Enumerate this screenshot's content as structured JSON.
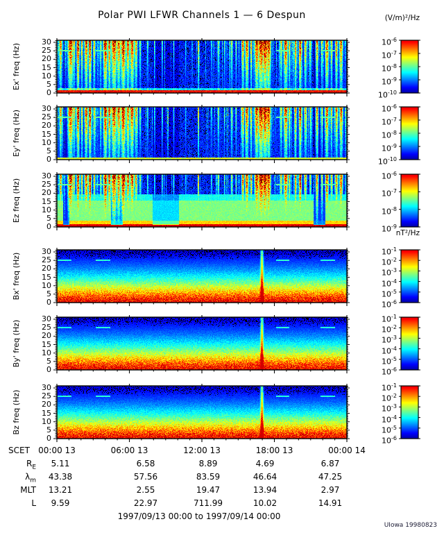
{
  "title": "Polar PWI LFWR Channels 1 — 6 Despun",
  "credit": "UIowa 19980823",
  "date_range_label": "1997/09/13 00:00 to 1997/09/14 00:00",
  "units": {
    "electric": "(V/m)²/Hz",
    "magnetic": "nT²/Hz"
  },
  "time_axis": {
    "prefix": "SCET",
    "tick_labels": [
      "00:00 13",
      "06:00 13",
      "12:00 13",
      "18:00 13",
      "00:00 14"
    ],
    "tick_hours": [
      0,
      6,
      12,
      18,
      24
    ]
  },
  "frequency_axis": {
    "ticks_hz": [
      0,
      5,
      10,
      15,
      20,
      25,
      30
    ],
    "max_hz": 31.25
  },
  "panels": [
    {
      "id": "ex",
      "ylabel": "Ex' freq (Hz)",
      "kind": "E1",
      "seed": 101,
      "colorbar_exponents": [
        -6,
        -7,
        -8,
        -9,
        -10
      ]
    },
    {
      "id": "ey",
      "ylabel": "Ey' freq (Hz)",
      "kind": "E2",
      "seed": 202,
      "colorbar_exponents": [
        -6,
        -7,
        -8,
        -9,
        -10
      ]
    },
    {
      "id": "ez",
      "ylabel": "Ez freq (Hz)",
      "kind": "E3",
      "seed": 303,
      "colorbar_exponents": [
        -6,
        -7,
        -8,
        -9
      ]
    },
    {
      "id": "bx",
      "ylabel": "Bx' freq (Hz)",
      "kind": "B",
      "seed": 404,
      "colorbar_exponents": [
        -1,
        -2,
        -3,
        -4,
        -5,
        -6
      ]
    },
    {
      "id": "by",
      "ylabel": "By' freq (Hz)",
      "kind": "B",
      "seed": 505,
      "colorbar_exponents": [
        -1,
        -2,
        -3,
        -4,
        -5,
        -6
      ]
    },
    {
      "id": "bz",
      "ylabel": "Bz freq (Hz)",
      "kind": "B",
      "seed": 606,
      "colorbar_exponents": [
        -1,
        -2,
        -3,
        -4,
        -5,
        -6
      ]
    }
  ],
  "ephemeris": {
    "rows": [
      {
        "label": "R",
        "sub": "E",
        "values": [
          "5.11",
          "6.58",
          "8.89",
          "4.69",
          "6.87"
        ]
      },
      {
        "label": "λ",
        "sub": "m",
        "values": [
          "43.38",
          "57.56",
          "83.59",
          "46.64",
          "47.25"
        ]
      },
      {
        "label": "MLT",
        "sub": "",
        "values": [
          "13.21",
          "2.55",
          "19.47",
          "13.94",
          "2.97"
        ]
      },
      {
        "label": "L",
        "sub": "",
        "values": [
          "9.59",
          "22.97",
          "711.99",
          "10.02",
          "14.91"
        ]
      }
    ]
  },
  "render": {
    "bursts": [
      [
        0.012,
        0.004,
        0.8
      ],
      [
        0.046,
        0.008,
        0.95
      ],
      [
        0.058,
        0.003,
        0.7
      ],
      [
        0.072,
        0.004,
        1.0
      ],
      [
        0.085,
        0.003,
        0.75
      ],
      [
        0.1,
        0.005,
        0.9
      ],
      [
        0.113,
        0.004,
        1.0
      ],
      [
        0.128,
        0.003,
        0.7
      ],
      [
        0.15,
        0.003,
        0.6
      ],
      [
        0.166,
        0.006,
        1.0
      ],
      [
        0.18,
        0.004,
        0.9
      ],
      [
        0.196,
        0.008,
        0.95
      ],
      [
        0.212,
        0.006,
        0.85
      ],
      [
        0.228,
        0.007,
        1.0
      ],
      [
        0.244,
        0.005,
        0.85
      ],
      [
        0.258,
        0.006,
        0.9
      ],
      [
        0.272,
        0.004,
        0.75
      ],
      [
        0.286,
        0.003,
        0.55
      ],
      [
        0.312,
        0.002,
        0.5
      ],
      [
        0.336,
        0.002,
        0.45
      ],
      [
        0.362,
        0.002,
        0.5
      ],
      [
        0.402,
        0.002,
        0.45
      ],
      [
        0.443,
        0.002,
        0.4
      ],
      [
        0.487,
        0.0015,
        0.9
      ],
      [
        0.532,
        0.002,
        0.45
      ],
      [
        0.556,
        0.003,
        0.55
      ],
      [
        0.577,
        0.002,
        0.5
      ],
      [
        0.602,
        0.003,
        0.6
      ],
      [
        0.617,
        0.002,
        0.55
      ],
      [
        0.64,
        0.004,
        0.8
      ],
      [
        0.654,
        0.005,
        0.9
      ],
      [
        0.669,
        0.003,
        0.75
      ],
      [
        0.688,
        0.006,
        0.95
      ],
      [
        0.703,
        0.009,
        1.0
      ],
      [
        0.717,
        0.008,
        1.0
      ],
      [
        0.729,
        0.006,
        0.95
      ],
      [
        0.772,
        0.004,
        0.65
      ],
      [
        0.788,
        0.006,
        0.9
      ],
      [
        0.801,
        0.003,
        0.7
      ],
      [
        0.822,
        0.003,
        0.85
      ],
      [
        0.838,
        0.004,
        0.95
      ],
      [
        0.856,
        0.004,
        0.75
      ],
      [
        0.873,
        0.003,
        0.6
      ],
      [
        0.896,
        0.004,
        0.8
      ],
      [
        0.913,
        0.003,
        0.65
      ],
      [
        0.93,
        0.005,
        0.9
      ],
      [
        0.946,
        0.003,
        0.7
      ],
      [
        0.963,
        0.004,
        0.8
      ],
      [
        0.979,
        0.005,
        0.85
      ]
    ],
    "dark_patches": [
      [
        0.02,
        0.043,
        0.25
      ],
      [
        0.185,
        0.225,
        0.45
      ],
      [
        0.33,
        0.42,
        0.65
      ],
      [
        0.885,
        0.925,
        0.3
      ]
    ],
    "stripe_regions": [
      [
        0.0,
        0.28,
        0.6
      ],
      [
        0.28,
        0.52,
        0.12
      ],
      [
        0.52,
        0.62,
        0.3
      ],
      [
        0.62,
        0.76,
        0.55
      ],
      [
        0.76,
        0.8,
        0.3
      ],
      [
        0.8,
        1.0,
        0.5
      ]
    ],
    "marker_dashes": {
      "freq_hz": 25,
      "x_ranges": [
        [
          0.002,
          0.048
        ],
        [
          0.132,
          0.182
        ],
        [
          0.754,
          0.801
        ],
        [
          0.909,
          0.959
        ]
      ]
    },
    "b_spike": {
      "t": 0.706,
      "w": 0.0035
    }
  },
  "chart_data": {
    "type": "heatmap",
    "subtype": "multi-panel time-frequency spectrogram",
    "title": "Polar PWI LFWR Channels 1 — 6 Despun",
    "time_range": "1997/09/13 00:00 to 1997/09/14 00:00",
    "x_axis": {
      "label": "SCET",
      "tick_labels": [
        "00:00 13",
        "06:00 13",
        "12:00 13",
        "18:00 13",
        "00:00 14"
      ],
      "tick_hours": [
        0,
        6,
        12,
        18,
        24
      ]
    },
    "y_axis": {
      "label": "freq (Hz)",
      "range_hz": [
        0,
        31.25
      ],
      "ticks_hz": [
        0,
        5,
        10,
        15,
        20,
        25,
        30
      ]
    },
    "panels": [
      {
        "name": "Ex'",
        "units": "(V/m)²/Hz",
        "color_scale_min": "1e-10",
        "color_scale_max": "1e-6"
      },
      {
        "name": "Ey'",
        "units": "(V/m)²/Hz",
        "color_scale_min": "1e-10",
        "color_scale_max": "1e-6"
      },
      {
        "name": "Ez",
        "units": "(V/m)²/Hz",
        "color_scale_min": "1e-9",
        "color_scale_max": "1e-6"
      },
      {
        "name": "Bx'",
        "units": "nT²/Hz",
        "color_scale_min": "1e-6",
        "color_scale_max": "1e-1"
      },
      {
        "name": "By'",
        "units": "nT²/Hz",
        "color_scale_min": "1e-6",
        "color_scale_max": "1e-1"
      },
      {
        "name": "Bz",
        "units": "nT²/Hz",
        "color_scale_min": "1e-6",
        "color_scale_max": "1e-1"
      }
    ],
    "ephemeris_table": {
      "column_times": [
        "00:00 13",
        "06:00 13",
        "12:00 13",
        "18:00 13",
        "00:00 14"
      ],
      "rows": [
        {
          "parameter": "RE",
          "values": [
            5.11,
            6.58,
            8.89,
            4.69,
            6.87
          ]
        },
        {
          "parameter": "λm",
          "values": [
            43.38,
            57.56,
            83.59,
            46.64,
            47.25
          ]
        },
        {
          "parameter": "MLT",
          "values": [
            13.21,
            2.55,
            19.47,
            13.94,
            2.97
          ]
        },
        {
          "parameter": "L",
          "values": [
            9.59,
            22.97,
            711.99,
            10.02,
            14.91
          ]
        }
      ]
    },
    "notable_features": [
      "Broadband electric-field bursts strongest ~00:30-06:30 and ~15:00-18:30 in Ex', Ey', Ez",
      "Most intense electric burst (red, ~10^-6 (V/m)²/Hz) near 16:30-17:30",
      "Narrow magnetic broadband spike near 17:00 visible in Bx', By', Bz",
      "Persistent intense band below ~5 Hz in all magnetic channels",
      "Cyan instrument marker dashes at 25 Hz near 00:00-01:10, 03:10-04:20, 18:05-19:15, 21:50-23:00"
    ]
  }
}
